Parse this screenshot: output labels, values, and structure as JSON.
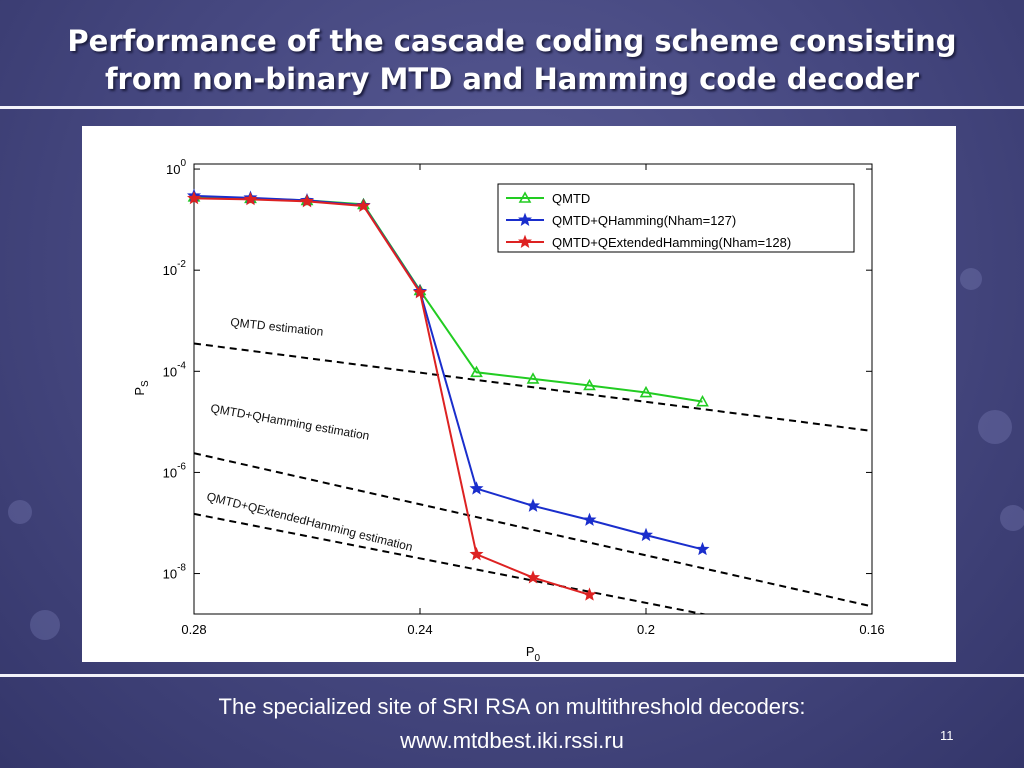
{
  "slide": {
    "title_line1": "Performance of the cascade coding scheme consisting",
    "title_line2": "from non-binary MTD and Hamming code decoder",
    "footer_line1": "The specialized site of SRI RSA on multithreshold decoders:",
    "footer_line2": "www.mtdbest.iki.rssi.ru",
    "slide_number": "11"
  },
  "chart_data": {
    "type": "line",
    "title": "",
    "xlabel": "P",
    "xlabel_sub": "0",
    "ylabel": "P",
    "ylabel_sub": "S",
    "x_ticks": [
      "0.28",
      "0.24",
      "0.2",
      "0.16"
    ],
    "x_tick_values": [
      0.28,
      0.24,
      0.2,
      0.16
    ],
    "y_ticks": [
      {
        "base": "10",
        "exp": "0"
      },
      {
        "base": "10",
        "exp": "-2"
      },
      {
        "base": "10",
        "exp": "-4"
      },
      {
        "base": "10",
        "exp": "-6"
      },
      {
        "base": "10",
        "exp": "-8"
      }
    ],
    "y_tick_values": [
      0,
      -2,
      -4,
      -6,
      -8
    ],
    "xlim": [
      0.28,
      0.16
    ],
    "y_scale": "log",
    "ylim_log10": [
      -8.8,
      0.1
    ],
    "grid": false,
    "legend_position": "top-right",
    "series": [
      {
        "name": "QMTD",
        "color": "#22cc22",
        "marker": "triangle",
        "x": [
          0.28,
          0.27,
          0.26,
          0.25,
          0.24,
          0.23,
          0.22,
          0.21,
          0.2,
          0.19
        ],
        "log10_y": [
          -0.55,
          -0.58,
          -0.62,
          -0.7,
          -2.4,
          -4.02,
          -4.15,
          -4.28,
          -4.42,
          -4.6
        ]
      },
      {
        "name": "QMTD+QHamming(Nham=127)",
        "color": "#1a2ecc",
        "marker": "star",
        "x": [
          0.28,
          0.27,
          0.26,
          0.25,
          0.24,
          0.23,
          0.22,
          0.21,
          0.2,
          0.19
        ],
        "log10_y": [
          -0.53,
          -0.57,
          -0.62,
          -0.72,
          -2.42,
          -6.32,
          -6.66,
          -6.94,
          -7.24,
          -7.52
        ]
      },
      {
        "name": "QMTD+QExtendedHamming(Nham=128)",
        "color": "#dd2222",
        "marker": "star",
        "x": [
          0.28,
          0.27,
          0.26,
          0.25,
          0.24,
          0.23,
          0.22,
          0.21
        ],
        "log10_y": [
          -0.58,
          -0.6,
          -0.64,
          -0.73,
          -2.44,
          -7.62,
          -8.08,
          -8.42
        ]
      }
    ],
    "estimations": [
      {
        "label": "QMTD estimation",
        "color": "#000000",
        "x": [
          0.28,
          0.16
        ],
        "log10_y": [
          -3.45,
          -5.18
        ]
      },
      {
        "label": "QMTD+QHamming estimation",
        "color": "#000000",
        "x": [
          0.28,
          0.16
        ],
        "log10_y": [
          -5.62,
          -8.65
        ]
      },
      {
        "label": "QMTD+QExtendedHamming estimation",
        "color": "#000000",
        "x": [
          0.28,
          0.18
        ],
        "log10_y": [
          -6.82,
          -9.02
        ]
      }
    ]
  }
}
